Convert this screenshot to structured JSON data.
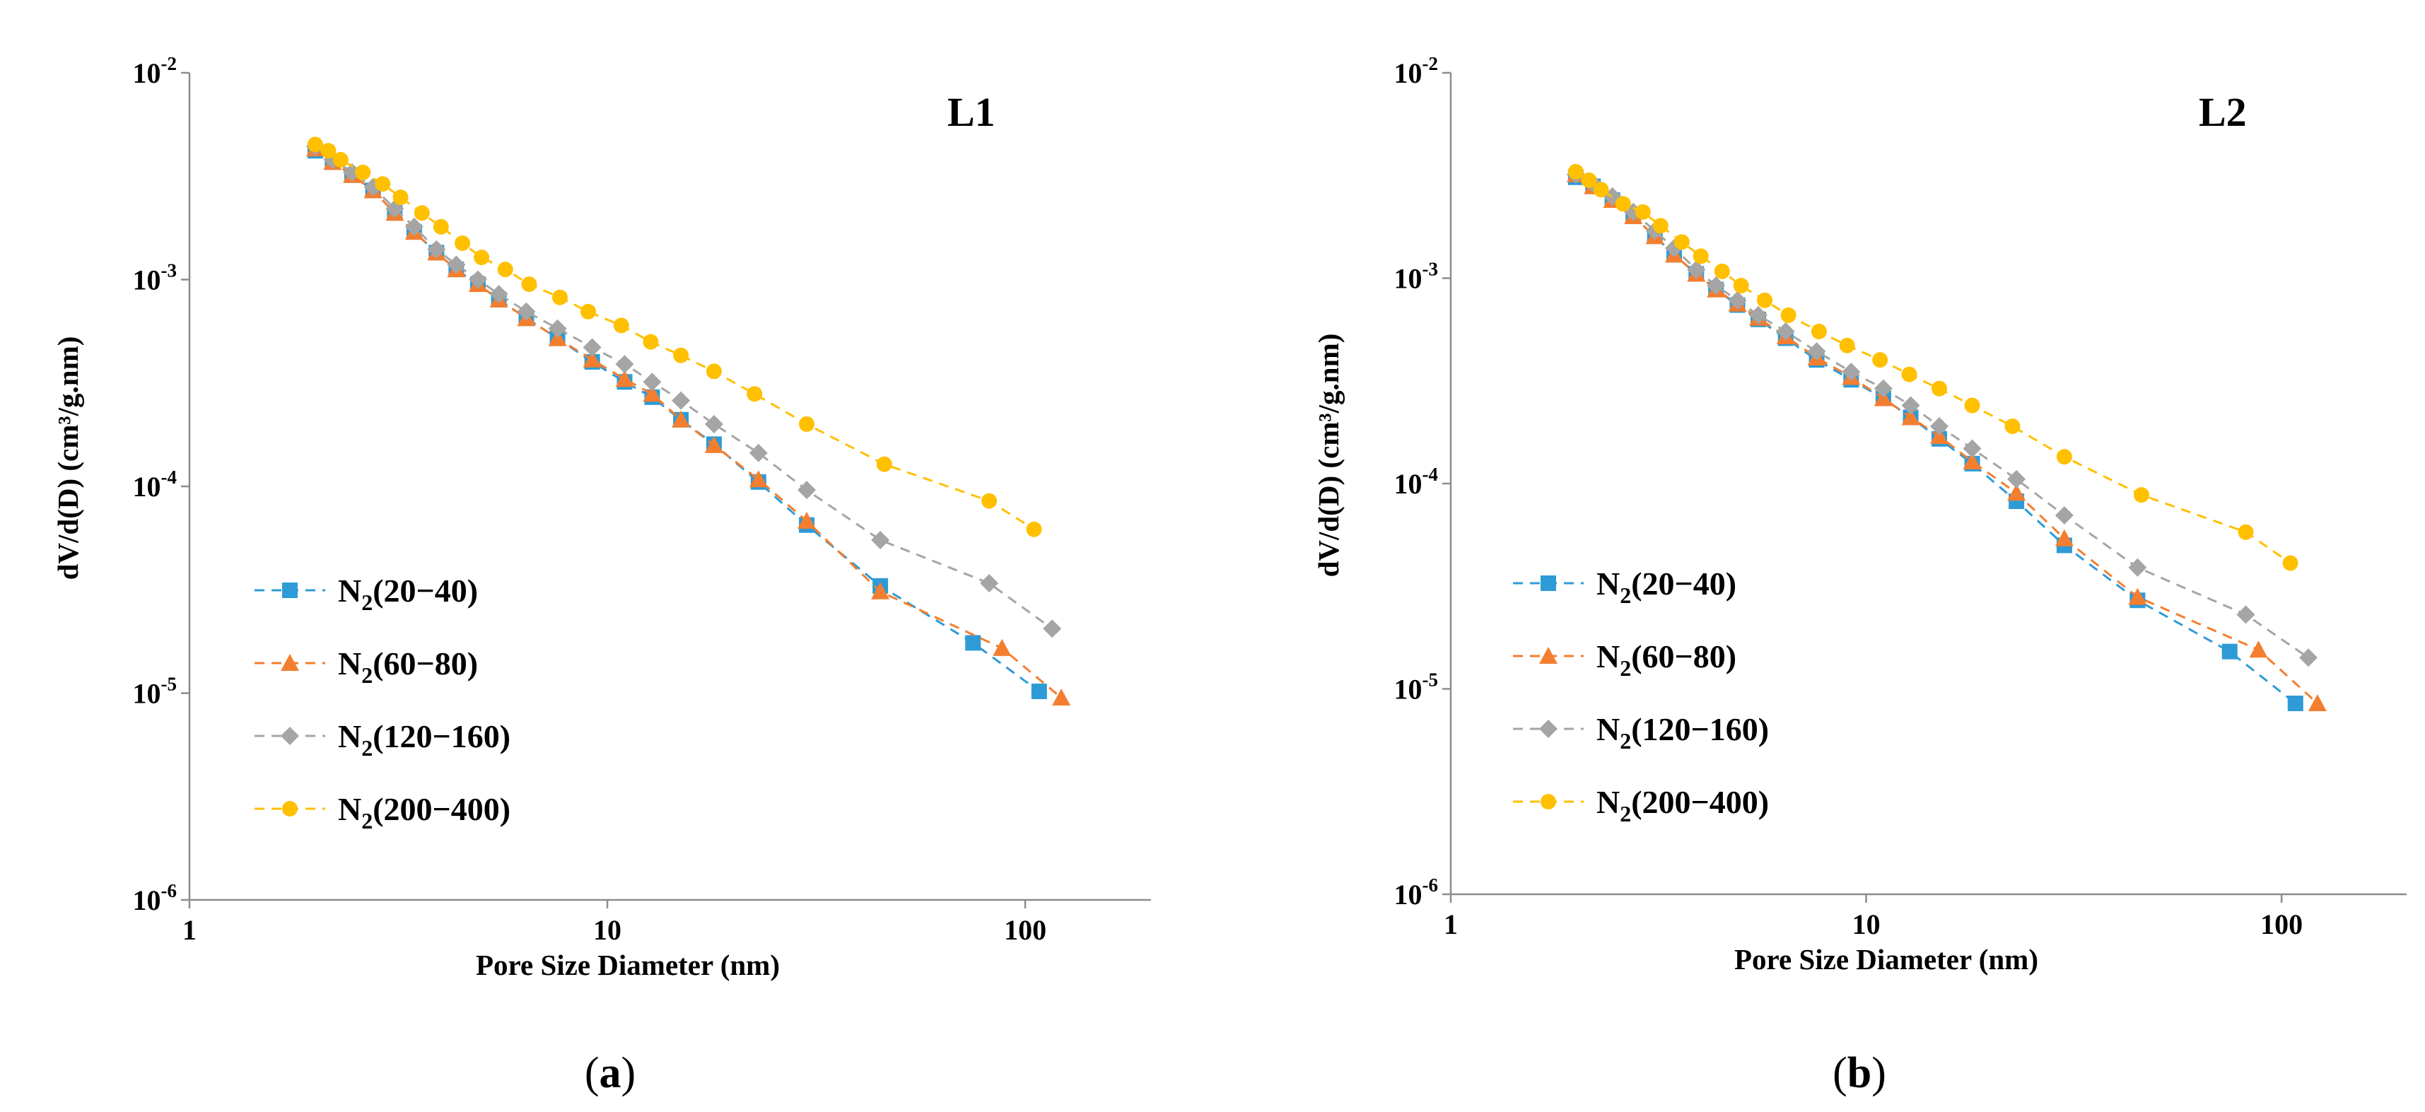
{
  "chart_data": [
    {
      "type": "line",
      "panel_title": "L1",
      "caption_letter": "a",
      "xlabel": "Pore Size Diameter (nm)",
      "ylabel": "dV/d(D) (cm³/g.nm)",
      "xscale": "log",
      "yscale": "log",
      "xlim": [
        1,
        200
      ],
      "ylim": [
        1e-06,
        0.01
      ],
      "x_ticks": [
        {
          "value": 1,
          "label": "1"
        },
        {
          "value": 10,
          "label": "10"
        },
        {
          "value": 100,
          "label": "100"
        }
      ],
      "y_ticks": [
        {
          "value": 0.01,
          "base": "10",
          "exp": "-2"
        },
        {
          "value": 0.001,
          "base": "10",
          "exp": "-3"
        },
        {
          "value": 0.0001,
          "base": "10",
          "exp": "-4"
        },
        {
          "value": 1e-05,
          "base": "10",
          "exp": "-5"
        },
        {
          "value": 1e-06,
          "base": "10",
          "exp": "-6"
        }
      ],
      "legend_position": "bottom-left",
      "series": [
        {
          "name_main": "N",
          "name_sub": "2",
          "name_rest": "(20−40)",
          "color": "#2E9BD6",
          "marker": "square",
          "x": [
            2.0,
            2.2,
            2.45,
            2.75,
            3.1,
            3.45,
            3.9,
            4.35,
            4.9,
            5.5,
            6.4,
            7.6,
            9.2,
            11.0,
            12.8,
            15.0,
            18.0,
            23.0,
            30.0,
            45.0,
            75.0,
            108.0
          ],
          "y": [
            0.0042,
            0.0037,
            0.0032,
            0.0027,
            0.0021,
            0.0017,
            0.00135,
            0.00112,
            0.00095,
            0.0008,
            0.00065,
            0.00052,
            0.0004,
            0.00032,
            0.00027,
            0.00021,
            0.00016,
            0.000105,
            6.5e-05,
            3.3e-05,
            1.75e-05,
            1.02e-05
          ]
        },
        {
          "name_main": "N",
          "name_sub": "2",
          "name_rest": "(60−80)",
          "color": "#F47E2F",
          "marker": "triangle",
          "x": [
            2.0,
            2.2,
            2.45,
            2.75,
            3.1,
            3.45,
            3.9,
            4.35,
            4.9,
            5.5,
            6.4,
            7.6,
            9.2,
            11.0,
            12.8,
            15.0,
            18.0,
            23.0,
            30.0,
            45.0,
            88.0,
            122.0
          ],
          "y": [
            0.0043,
            0.0037,
            0.0032,
            0.0027,
            0.0021,
            0.0017,
            0.00135,
            0.00112,
            0.00095,
            0.0008,
            0.00065,
            0.00052,
            0.00041,
            0.00033,
            0.00028,
            0.00021,
            0.000158,
            0.000108,
            6.8e-05,
            3.1e-05,
            1.65e-05,
            9.5e-06
          ]
        },
        {
          "name_main": "N",
          "name_sub": "2",
          "name_rest": "(120−160)",
          "color": "#A5A5A5",
          "marker": "diamond",
          "x": [
            2.0,
            2.2,
            2.45,
            2.75,
            3.1,
            3.45,
            3.9,
            4.35,
            4.9,
            5.5,
            6.4,
            7.6,
            9.2,
            11.0,
            12.8,
            15.0,
            18.0,
            23.0,
            30.0,
            45.0,
            82.0,
            116.0
          ],
          "y": [
            0.0044,
            0.0038,
            0.0033,
            0.0028,
            0.0022,
            0.0018,
            0.0014,
            0.00118,
            0.001,
            0.00085,
            0.0007,
            0.00058,
            0.00047,
            0.00039,
            0.00032,
            0.00026,
            0.0002,
            0.000145,
            9.6e-05,
            5.5e-05,
            3.4e-05,
            2.05e-05
          ]
        },
        {
          "name_main": "N",
          "name_sub": "2",
          "name_rest": "(200−400)",
          "color": "#FFC000",
          "marker": "circle",
          "x": [
            2.0,
            2.15,
            2.3,
            2.6,
            2.9,
            3.2,
            3.6,
            4.0,
            4.5,
            5.0,
            5.7,
            6.5,
            7.7,
            9.0,
            10.8,
            12.7,
            15.0,
            18.0,
            22.5,
            30.0,
            46.0,
            82.0,
            105.0
          ],
          "y": [
            0.0045,
            0.0042,
            0.0038,
            0.0033,
            0.0029,
            0.0025,
            0.0021,
            0.0018,
            0.0015,
            0.00128,
            0.00112,
            0.00095,
            0.00082,
            0.0007,
            0.0006,
            0.0005,
            0.00043,
            0.00036,
            0.00028,
            0.0002,
            0.000128,
            8.5e-05,
            6.2e-05
          ]
        }
      ]
    },
    {
      "type": "line",
      "panel_title": "L2",
      "caption_letter": "b",
      "xlabel": "Pore Size Diameter (nm)",
      "ylabel": "dV/d(D) (cm³/g.nm)",
      "xscale": "log",
      "yscale": "log",
      "xlim": [
        1,
        200
      ],
      "ylim": [
        1e-06,
        0.01
      ],
      "x_ticks": [
        {
          "value": 1,
          "label": "1"
        },
        {
          "value": 10,
          "label": "10"
        },
        {
          "value": 100,
          "label": "100"
        }
      ],
      "y_ticks": [
        {
          "value": 0.01,
          "base": "10",
          "exp": "-2"
        },
        {
          "value": 0.001,
          "base": "10",
          "exp": "-3"
        },
        {
          "value": 0.0001,
          "base": "10",
          "exp": "-4"
        },
        {
          "value": 1e-05,
          "base": "10",
          "exp": "-5"
        },
        {
          "value": 1e-06,
          "base": "10",
          "exp": "-6"
        }
      ],
      "legend_position": "bottom-left",
      "series": [
        {
          "name_main": "N",
          "name_sub": "2",
          "name_rest": "(20−40)",
          "color": "#2E9BD6",
          "marker": "square",
          "x": [
            2.0,
            2.2,
            2.45,
            2.75,
            3.1,
            3.45,
            3.9,
            4.35,
            4.9,
            5.5,
            6.4,
            7.6,
            9.2,
            11.0,
            12.8,
            15.0,
            18.0,
            23.0,
            30.0,
            45.0,
            75.0,
            108.0
          ],
          "y": [
            0.0031,
            0.0028,
            0.0024,
            0.002,
            0.0016,
            0.0013,
            0.00105,
            0.00088,
            0.00074,
            0.00063,
            0.00051,
            0.0004,
            0.00032,
            0.00026,
            0.00021,
            0.000165,
            0.000125,
            8.2e-05,
            5e-05,
            2.7e-05,
            1.52e-05,
            8.5e-06
          ]
        },
        {
          "name_main": "N",
          "name_sub": "2",
          "name_rest": "(60−80)",
          "color": "#F47E2F",
          "marker": "triangle",
          "x": [
            2.0,
            2.2,
            2.45,
            2.75,
            3.1,
            3.45,
            3.9,
            4.35,
            4.9,
            5.5,
            6.4,
            7.6,
            9.2,
            11.0,
            12.8,
            15.0,
            18.0,
            23.0,
            30.0,
            45.0,
            88.0,
            122.0
          ],
          "y": [
            0.0032,
            0.0028,
            0.0024,
            0.002,
            0.0016,
            0.0013,
            0.00105,
            0.00088,
            0.00075,
            0.00064,
            0.00052,
            0.00041,
            0.00033,
            0.00026,
            0.00021,
            0.00017,
            0.000128,
            9e-05,
            5.4e-05,
            2.8e-05,
            1.55e-05,
            8.5e-06
          ]
        },
        {
          "name_main": "N",
          "name_sub": "2",
          "name_rest": "(120−160)",
          "color": "#A5A5A5",
          "marker": "diamond",
          "x": [
            2.0,
            2.2,
            2.45,
            2.75,
            3.1,
            3.45,
            3.9,
            4.35,
            4.9,
            5.5,
            6.4,
            7.6,
            9.2,
            11.0,
            12.8,
            15.0,
            18.0,
            23.0,
            30.0,
            45.0,
            82.0,
            116.0
          ],
          "y": [
            0.0032,
            0.0029,
            0.0025,
            0.0021,
            0.0017,
            0.0014,
            0.0011,
            0.00092,
            0.00078,
            0.00066,
            0.00055,
            0.00044,
            0.00035,
            0.00029,
            0.00024,
            0.00019,
            0.000148,
            0.000105,
            7e-05,
            3.9e-05,
            2.3e-05,
            1.42e-05
          ]
        },
        {
          "name_main": "N",
          "name_sub": "2",
          "name_rest": "(200−400)",
          "color": "#FFC000",
          "marker": "circle",
          "x": [
            2.0,
            2.15,
            2.3,
            2.6,
            2.9,
            3.2,
            3.6,
            4.0,
            4.5,
            5.0,
            5.7,
            6.5,
            7.7,
            9.0,
            10.8,
            12.7,
            15.0,
            18.0,
            22.5,
            30.0,
            46.0,
            82.0,
            105.0
          ],
          "y": [
            0.0033,
            0.003,
            0.0027,
            0.0023,
            0.0021,
            0.0018,
            0.0015,
            0.00128,
            0.00108,
            0.00092,
            0.00078,
            0.00066,
            0.00055,
            0.00047,
            0.0004,
            0.00034,
            0.00029,
            0.00024,
            0.00019,
            0.000135,
            8.8e-05,
            5.8e-05,
            4.1e-05
          ]
        }
      ]
    }
  ]
}
